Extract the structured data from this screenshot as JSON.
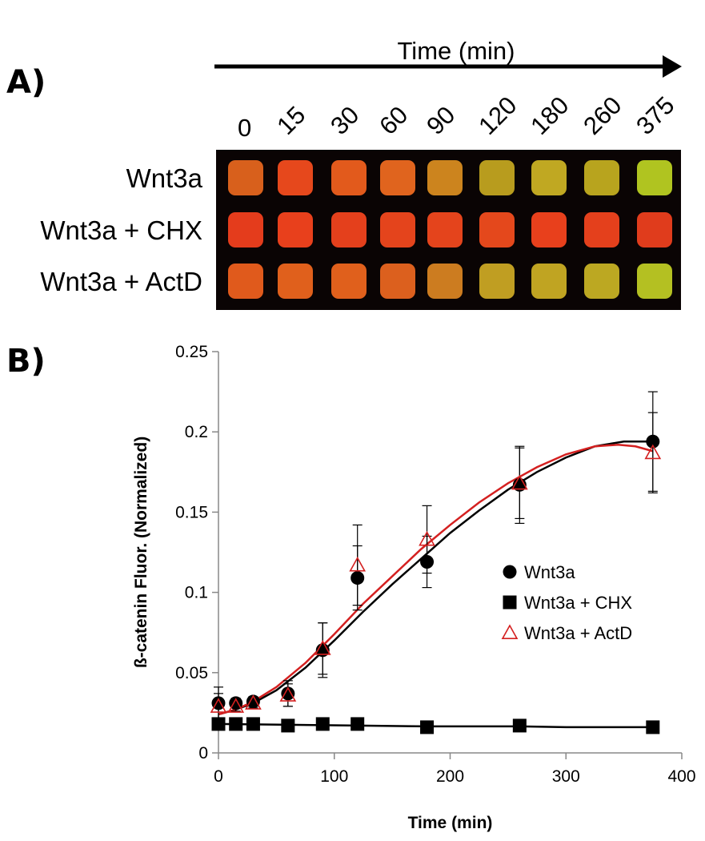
{
  "panel_a": {
    "label": "A)",
    "arrow_title": "Time (min)",
    "time_points": [
      "0",
      "15",
      "30",
      "60",
      "90",
      "120",
      "180",
      "260",
      "375"
    ],
    "rows": [
      {
        "label": "Wnt3a",
        "colors": [
          "#d8601c",
          "#e6481c",
          "#e25a1c",
          "#e0641e",
          "#cc841e",
          "#b89c1e",
          "#c0a822",
          "#b8a41e",
          "#b0c420"
        ]
      },
      {
        "label": "Wnt3a + CHX",
        "colors": [
          "#e43c1c",
          "#e8401c",
          "#e4401c",
          "#e4441c",
          "#e4441c",
          "#e4481c",
          "#e8401c",
          "#e4401c",
          "#e03c1c"
        ]
      },
      {
        "label": "Wnt3a + ActD",
        "colors": [
          "#e05a1c",
          "#e0601c",
          "#e0601c",
          "#dc601e",
          "#cc7c20",
          "#c09e22",
          "#c0a422",
          "#bca822",
          "#b4c022"
        ]
      }
    ],
    "blot_background": "#0a0404"
  },
  "chart_data": {
    "type": "scatter",
    "panel_label": "B)",
    "title": "",
    "xlabel": "Time (min)",
    "ylabel": "ß-catenin Fluor. (Normalized)",
    "xlim": [
      0,
      400
    ],
    "ylim": [
      0,
      0.25
    ],
    "xticks": [
      0,
      100,
      200,
      300,
      400
    ],
    "xtick_labels": [
      "0",
      "100",
      "200",
      "300",
      "400"
    ],
    "yticks": [
      0,
      0.05,
      0.1,
      0.15,
      0.2,
      0.25
    ],
    "ytick_labels": [
      "0",
      "0.05",
      "0.1",
      "0.15",
      "0.2",
      "0.25"
    ],
    "grid": false,
    "legend_position": "center-right",
    "series": [
      {
        "name": "Wnt3a",
        "marker": "circle-filled",
        "color": "#000000",
        "x": [
          0,
          15,
          30,
          60,
          90,
          120,
          180,
          260,
          375
        ],
        "y": [
          0.031,
          0.031,
          0.032,
          0.037,
          0.064,
          0.109,
          0.119,
          0.167,
          0.194
        ],
        "error": [
          0.01,
          0.003,
          0.003,
          0.008,
          0.017,
          0.02,
          0.016,
          0.024,
          0.031
        ],
        "fit_x": [
          0,
          15,
          30,
          50,
          75,
          100,
          125,
          150,
          175,
          200,
          225,
          250,
          275,
          300,
          325,
          350,
          375
        ],
        "fit_y": [
          0.024,
          0.027,
          0.031,
          0.039,
          0.053,
          0.07,
          0.088,
          0.105,
          0.121,
          0.137,
          0.151,
          0.164,
          0.175,
          0.184,
          0.191,
          0.194,
          0.194
        ]
      },
      {
        "name": "Wnt3a + CHX",
        "marker": "square-filled",
        "color": "#000000",
        "x": [
          0,
          15,
          30,
          60,
          90,
          120,
          180,
          260,
          375
        ],
        "y": [
          0.018,
          0.018,
          0.018,
          0.017,
          0.018,
          0.018,
          0.016,
          0.017,
          0.016
        ],
        "error": [
          0.001,
          0.001,
          0.001,
          0.001,
          0.001,
          0.001,
          0.001,
          0.001,
          0.001
        ],
        "fit_x": [
          0,
          60,
          120,
          180,
          260,
          300,
          375
        ],
        "fit_y": [
          0.018,
          0.0175,
          0.017,
          0.0165,
          0.0165,
          0.016,
          0.016
        ]
      },
      {
        "name": "Wnt3a + ActD",
        "marker": "triangle-open",
        "color": "#d42020",
        "x": [
          0,
          15,
          30,
          60,
          90,
          120,
          180,
          260,
          375
        ],
        "y": [
          0.029,
          0.029,
          0.031,
          0.036,
          0.065,
          0.117,
          0.133,
          0.168,
          0.187
        ],
        "error": [
          0.008,
          0.003,
          0.003,
          0.007,
          0.016,
          0.025,
          0.021,
          0.022,
          0.025
        ],
        "fit_x": [
          0,
          15,
          30,
          50,
          75,
          100,
          125,
          150,
          175,
          200,
          225,
          250,
          275,
          300,
          325,
          345,
          360,
          375
        ],
        "fit_y": [
          0.024,
          0.027,
          0.032,
          0.041,
          0.056,
          0.074,
          0.093,
          0.11,
          0.127,
          0.142,
          0.156,
          0.168,
          0.178,
          0.186,
          0.191,
          0.192,
          0.191,
          0.188
        ]
      }
    ]
  }
}
